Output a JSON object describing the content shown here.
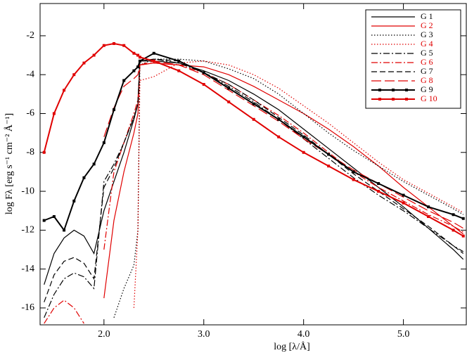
{
  "chart_data": {
    "type": "line",
    "xlabel": "log [λ/Å]",
    "ylabel": "log Fλ [erg s⁻¹ cm⁻² Å⁻¹]",
    "xlim": [
      1.36,
      5.63
    ],
    "ylim": [
      -16.87,
      -0.34
    ],
    "xticks": [
      {
        "value": 2,
        "label": "2.0"
      },
      {
        "value": 3,
        "label": "3.0"
      },
      {
        "value": 4,
        "label": "4.0"
      },
      {
        "value": 5,
        "label": "5.0"
      }
    ],
    "yticks": [
      -16,
      -14,
      -12,
      -10,
      -8,
      -6,
      -4,
      -2
    ],
    "legend": "upper right",
    "x": [
      1.4,
      1.5,
      1.6,
      1.7,
      1.8,
      1.9,
      2.0,
      2.1,
      2.2,
      2.3,
      2.34,
      2.36,
      2.5,
      2.75,
      3.0,
      3.25,
      3.5,
      3.75,
      4.0,
      4.25,
      4.5,
      4.75,
      5.0,
      5.25,
      5.5,
      5.6
    ],
    "series": [
      {
        "name": "G 1",
        "color": "#000000",
        "dash": "solid",
        "values": [
          -14.8,
          -13.2,
          -12.4,
          -12.0,
          -12.3,
          -13.2,
          -11,
          -9.5,
          -8,
          -6.3,
          -5.5,
          -3.3,
          -3.3,
          -3.4,
          -3.8,
          -4.3,
          -5.0,
          -5.8,
          -6.8,
          -7.8,
          -8.8,
          -9.8,
          -10.8,
          -11.9,
          -13,
          -13.5
        ]
      },
      {
        "name": "G 2",
        "color": "#e00000",
        "dash": "solid",
        "values": [
          null,
          null,
          null,
          null,
          null,
          null,
          -15.5,
          -11.5,
          -9,
          -7,
          -6,
          -3.5,
          -3.4,
          -3.5,
          -3.6,
          -4.0,
          -4.6,
          -5.3,
          -6.0,
          -6.8,
          -7.7,
          -8.7,
          -9.8,
          -10.8,
          -11.8,
          -12.2
        ]
      },
      {
        "name": "G 3",
        "color": "#000000",
        "dash": "dotted",
        "values": [
          null,
          null,
          null,
          null,
          null,
          null,
          null,
          -16.5,
          -15,
          -13.8,
          -12,
          -3.5,
          -3.2,
          -3.2,
          -3.3,
          -3.7,
          -4.2,
          -5.0,
          -6.0,
          -7.0,
          -7.9,
          -8.7,
          -9.5,
          -10.2,
          -10.9,
          -11.2
        ]
      },
      {
        "name": "G 4",
        "color": "#e00000",
        "dash": "dotted",
        "values": [
          null,
          null,
          null,
          null,
          null,
          null,
          null,
          null,
          null,
          -16,
          -12,
          -4.3,
          -4.1,
          -3.4,
          -3.3,
          -3.5,
          -4.0,
          -4.7,
          -5.6,
          -6.5,
          -7.5,
          -8.5,
          -9.4,
          -10.1,
          -10.8,
          -11.1
        ]
      },
      {
        "name": "G 5",
        "color": "#000000",
        "dash": "dashdot",
        "values": [
          -16.5,
          -15.3,
          -14.5,
          -14.2,
          -14.4,
          -15,
          -9.5,
          -8.6,
          -7.5,
          -6.2,
          -5.5,
          -3.3,
          -3.2,
          -3.4,
          -3.9,
          -4.6,
          -5.4,
          -6.3,
          -7.3,
          -8.3,
          -9.3,
          -10.2,
          -11.0,
          -11.9,
          -12.8,
          -13.1
        ]
      },
      {
        "name": "G 6",
        "color": "#e00000",
        "dash": "dashdot",
        "values": [
          -16.8,
          -16,
          -15.6,
          -16,
          -16.8,
          null,
          -13,
          -9,
          -7.5,
          -6,
          -5.3,
          -3.5,
          -3.4,
          -3.5,
          -3.9,
          -4.5,
          -5.3,
          -6.1,
          -7.0,
          -8.0,
          -9.0,
          -9.8,
          -10.5,
          -11.2,
          -11.8,
          -12.1
        ]
      },
      {
        "name": "G 7",
        "color": "#000000",
        "dash": "dashed",
        "values": [
          -15.7,
          -14.3,
          -13.6,
          -13.4,
          -13.7,
          -14.5,
          -9.8,
          -8.8,
          -7.5,
          -6.2,
          -5.5,
          -3.3,
          -3.2,
          -3.3,
          -3.9,
          -4.5,
          -5.3,
          -6.2,
          -7.1,
          -8.1,
          -9.1,
          -10.0,
          -10.9,
          -11.8,
          -12.8,
          -13.2
        ]
      },
      {
        "name": "G 8",
        "color": "#e00000",
        "dash": "longdash",
        "values": [
          null,
          null,
          null,
          null,
          null,
          null,
          -7.2,
          -5.7,
          -4.6,
          -4.2,
          -4.0,
          -3.5,
          -3.3,
          -3.5,
          -4.0,
          -4.8,
          -5.6,
          -6.4,
          -7.3,
          -8.1,
          -8.9,
          -9.6,
          -10.3,
          -11.0,
          -11.6,
          -11.9
        ]
      },
      {
        "name": "G 9",
        "color": "#000000",
        "dash": "solid",
        "marker": "square",
        "values": [
          -11.5,
          -11.3,
          -12.0,
          -10.5,
          -9.3,
          -8.6,
          -7.5,
          -5.8,
          -4.3,
          -3.8,
          -3.6,
          -3.3,
          -2.9,
          -3.3,
          -3.9,
          -4.7,
          -5.5,
          -6.3,
          -7.2,
          -8.1,
          -9.0,
          -9.6,
          -10.2,
          -10.8,
          -11.2,
          -11.4
        ]
      },
      {
        "name": "G 10",
        "color": "#e00000",
        "dash": "solid",
        "marker": "square",
        "values": [
          -8,
          -6,
          -4.8,
          -4.0,
          -3.4,
          -3.0,
          -2.5,
          -2.4,
          -2.5,
          -2.9,
          -3.0,
          -3.1,
          -3.3,
          -3.8,
          -4.5,
          -5.4,
          -6.3,
          -7.2,
          -8.0,
          -8.7,
          -9.4,
          -10.0,
          -10.6,
          -11.3,
          -12.0,
          -12.3
        ]
      }
    ]
  }
}
